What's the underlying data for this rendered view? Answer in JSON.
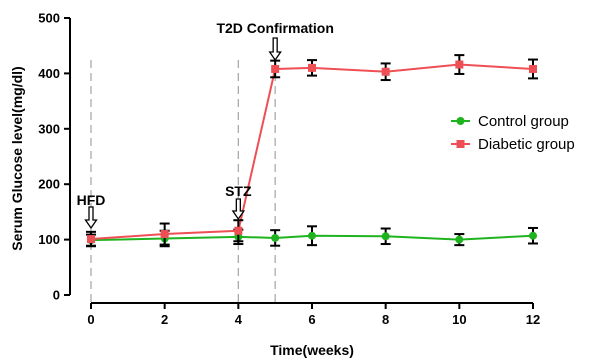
{
  "chart_data": {
    "type": "line",
    "title": "",
    "xlabel": "Time(weeks)",
    "ylabel": "Serum Glucose level(mg/dl)",
    "xlim": [
      0,
      12
    ],
    "ylim": [
      0,
      500
    ],
    "x_ticks": [
      "0",
      "2",
      "4",
      "6",
      "8",
      "10",
      "12"
    ],
    "y_ticks": [
      "0",
      "100",
      "200",
      "300",
      "400",
      "500"
    ],
    "grid": false,
    "legend_position": "right",
    "x": [
      0,
      2,
      4,
      5,
      6,
      8,
      10,
      12
    ],
    "series": [
      {
        "name": "Control group",
        "color": "#1fb41f",
        "marker": "circle",
        "values": [
          99,
          102,
          105,
          103,
          107,
          106,
          100,
          107
        ],
        "errors": [
          10,
          14,
          13,
          14,
          17,
          14,
          10,
          14
        ]
      },
      {
        "name": "Diabetic group",
        "color": "#ee4f55",
        "marker": "square",
        "values": [
          101,
          110,
          116,
          408,
          410,
          403,
          416,
          408
        ],
        "errors": [
          13,
          19,
          19,
          15,
          14,
          15,
          17,
          17
        ]
      }
    ],
    "annotations": [
      {
        "text": "HFD",
        "x": 0
      },
      {
        "text": "STZ",
        "x": 4
      },
      {
        "text": "T2D Confirmation",
        "x": 5
      }
    ]
  }
}
